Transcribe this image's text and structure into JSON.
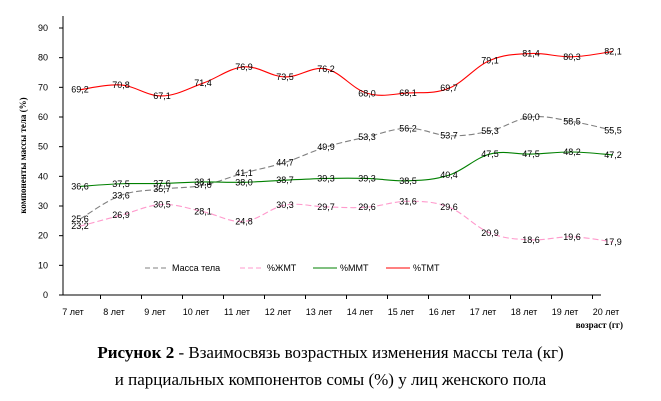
{
  "chart_data": {
    "type": "line",
    "ylabel": "компоненты массы тела (%)",
    "xlabel": "возраст (гг)",
    "ylim": [
      0,
      90
    ],
    "yticks": [
      "0",
      "10",
      "20",
      "30",
      "40",
      "50",
      "60",
      "70",
      "80",
      "90"
    ],
    "categories": [
      "7 лет",
      "8 лет",
      "9 лет",
      "10 лет",
      "11 лет",
      "12 лет",
      "13 лет",
      "14 лет",
      "15 лет",
      "16 лет",
      "17 лет",
      "18 лет",
      "19 лет",
      "20 лет"
    ],
    "grid": false,
    "legend_position": "bottom",
    "series": [
      {
        "name": "Масса тела",
        "color": "#808080",
        "dash": "dashed",
        "values": [
          25.6,
          33.6,
          35.7,
          37.0,
          41.1,
          44.7,
          49.9,
          53.3,
          56.2,
          53.7,
          55.3,
          60.0,
          58.5,
          55.5
        ]
      },
      {
        "name": "%ЖМТ",
        "color": "#ff99cc",
        "dash": "dashed",
        "values": [
          23.2,
          26.9,
          30.5,
          28.1,
          24.8,
          30.3,
          29.7,
          29.6,
          31.6,
          29.6,
          20.9,
          18.6,
          19.6,
          17.9
        ]
      },
      {
        "name": "%ММТ",
        "color": "#008000",
        "dash": "solid",
        "values": [
          36.6,
          37.5,
          37.6,
          38.1,
          38.0,
          38.7,
          39.3,
          39.3,
          38.5,
          40.4,
          47.5,
          47.5,
          48.2,
          47.2
        ]
      },
      {
        "name": "%ТМТ",
        "color": "#ff0000",
        "dash": "solid",
        "values": [
          69.2,
          70.8,
          67.1,
          71.4,
          76.9,
          73.5,
          76.2,
          68.0,
          68.1,
          69.7,
          79.1,
          81.4,
          80.3,
          82.1
        ]
      }
    ],
    "labels": [
      [
        "25,6",
        "33,6",
        "35,7",
        "37,0",
        "41,1",
        "44,7",
        "49,9",
        "53,3",
        "56,2",
        "53,7",
        "55,3",
        "60,0",
        "58,5",
        "55,5"
      ],
      [
        "23,2",
        "26,9",
        "30,5",
        "28,1",
        "24,8",
        "30,3",
        "29,7",
        "29,6",
        "31,6",
        "29,6",
        "20,9",
        "18,6",
        "19,6",
        "17,9"
      ],
      [
        "36,6",
        "37,5",
        "37,6",
        "38,1",
        "38,0",
        "38,7",
        "39,3",
        "39,3",
        "38,5",
        "40,4",
        "47,5",
        "47,5",
        "48,2",
        "47,2"
      ],
      [
        "69,2",
        "70,8",
        "67,1",
        "71,4",
        "76,9",
        "73,5",
        "76,2",
        "68,0",
        "68,1",
        "69,7",
        "79,1",
        "81,4",
        "80,3",
        "82,1"
      ]
    ]
  },
  "caption": {
    "figure_label": "Рисунок 2",
    "line1": " - Взаимосвязь возрастных изменения массы тела (кг)",
    "line2": "и парциальных компонентов сомы (%) у лиц женского пола"
  }
}
